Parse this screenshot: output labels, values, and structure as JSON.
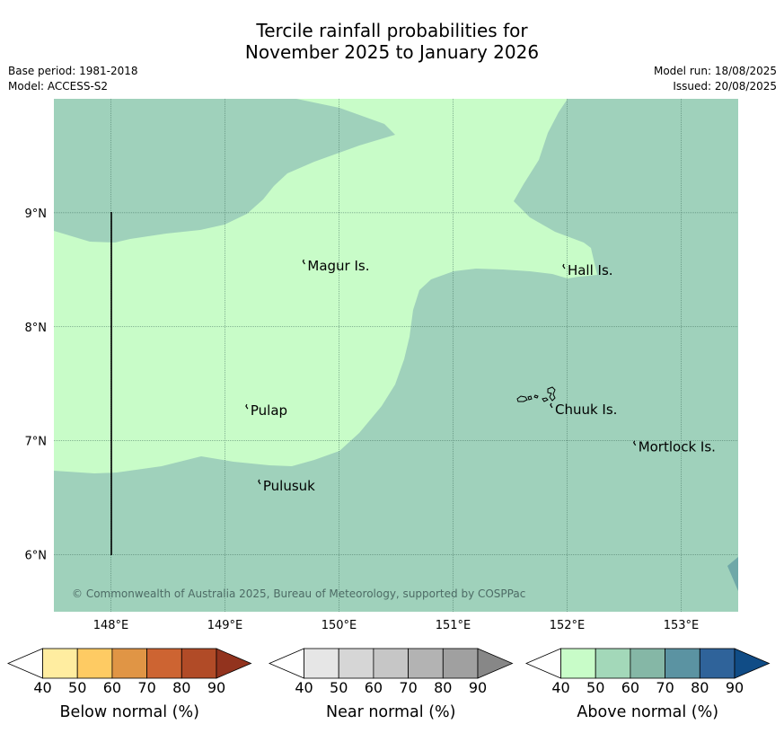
{
  "title": {
    "line1": "Tercile rainfall probabilities for",
    "line2": "November 2025 to January 2026"
  },
  "meta_left": {
    "base_period": "Base period: 1981-2018",
    "model": "Model: ACCESS-S2"
  },
  "meta_right": {
    "model_run": "Model run: 18/08/2025",
    "issued": "Issued: 20/08/2025"
  },
  "map": {
    "lon_range": [
      147.5,
      153.5
    ],
    "lat_range": [
      5.5,
      10.0
    ],
    "lon_ticks": [
      148,
      149,
      150,
      151,
      152,
      153
    ],
    "lon_tick_labels": [
      "148°E",
      "149°E",
      "150°E",
      "151°E",
      "152°E",
      "153°E"
    ],
    "lat_ticks": [
      6,
      7,
      8,
      9
    ],
    "lat_tick_labels": [
      "6°N",
      "7°N",
      "8°N",
      "9°N"
    ],
    "grid": true,
    "places": [
      {
        "name": "Magur Is.",
        "lon": 149.7,
        "lat": 8.55
      },
      {
        "name": "Hall Is.",
        "lon": 151.98,
        "lat": 8.51
      },
      {
        "name": "Pulap",
        "lon": 149.2,
        "lat": 7.28
      },
      {
        "name": "Chuuk Is.",
        "lon": 151.87,
        "lat": 7.29
      },
      {
        "name": "Mortlock Is.",
        "lon": 152.6,
        "lat": 6.96
      },
      {
        "name": "Pulusuk",
        "lon": 149.31,
        "lat": 6.62
      }
    ],
    "categories": {
      "background": "Above normal 50-60%",
      "regions": "Above normal 40-50%"
    },
    "copyright": "© Commonwealth of Australia 2025, Bureau of Meteorology, supported by COSPPac"
  },
  "colorbars": [
    {
      "label": "Below normal (%)",
      "tick_labels": [
        "40",
        "50",
        "60",
        "70",
        "80",
        "90"
      ],
      "colors": [
        "#ffffff",
        "#ffeda0",
        "#fecb63",
        "#e09545",
        "#cd6432",
        "#b14b27",
        "#92331e"
      ]
    },
    {
      "label": "Near normal (%)",
      "tick_labels": [
        "40",
        "50",
        "60",
        "70",
        "80",
        "90"
      ],
      "colors": [
        "#ffffff",
        "#e6e6e6",
        "#d6d6d6",
        "#c6c6c6",
        "#b3b3b3",
        "#a0a0a0",
        "#878787"
      ]
    },
    {
      "label": "Above normal (%)",
      "tick_labels": [
        "40",
        "50",
        "60",
        "70",
        "80",
        "90"
      ],
      "colors": [
        "#ffffff",
        "#c8fcc8",
        "#a3d8b9",
        "#85b7a6",
        "#5b93a2",
        "#2f639a",
        "#104c86"
      ]
    }
  ]
}
